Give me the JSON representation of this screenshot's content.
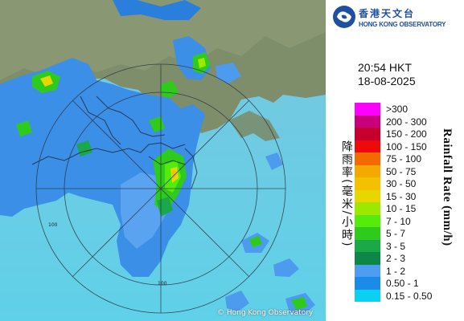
{
  "header": {
    "org_name_zh": "香港天文台",
    "org_name_en": "HONG KONG OBSERVATORY"
  },
  "timestamp": {
    "time": "20:54 HKT",
    "date": "18-08-2025"
  },
  "map": {
    "range_ring_label": "100",
    "credit": "© Hong Kong Observatory"
  },
  "legend": {
    "title_en": "Rainfall Rate (mm/h)",
    "title_zh": "降雨率(毫米/小時)",
    "items": [
      {
        "label": ">300",
        "color": "#ff00ff"
      },
      {
        "label": "200 - 300",
        "color": "#c9007d"
      },
      {
        "label": "150 - 200",
        "color": "#c6002c"
      },
      {
        "label": "100 - 150",
        "color": "#ee0a0a"
      },
      {
        "label": "75 - 100",
        "color": "#f56a00"
      },
      {
        "label": "50 - 75",
        "color": "#f4a900"
      },
      {
        "label": "30 - 50",
        "color": "#f2c100"
      },
      {
        "label": "15 - 30",
        "color": "#e8d600"
      },
      {
        "label": "10 - 15",
        "color": "#9ee800"
      },
      {
        "label": "7 - 10",
        "color": "#55ec0c"
      },
      {
        "label": "5 - 7",
        "color": "#2ecb1c"
      },
      {
        "label": "3 - 5",
        "color": "#1aa84a"
      },
      {
        "label": "2 - 3",
        "color": "#0d8748"
      },
      {
        "label": "1 - 2",
        "color": "#4d9ef0"
      },
      {
        "label": "0.50 - 1",
        "color": "#1a8ce8"
      },
      {
        "label": "0.15 - 0.50",
        "color": "#0bd0f2"
      }
    ]
  }
}
